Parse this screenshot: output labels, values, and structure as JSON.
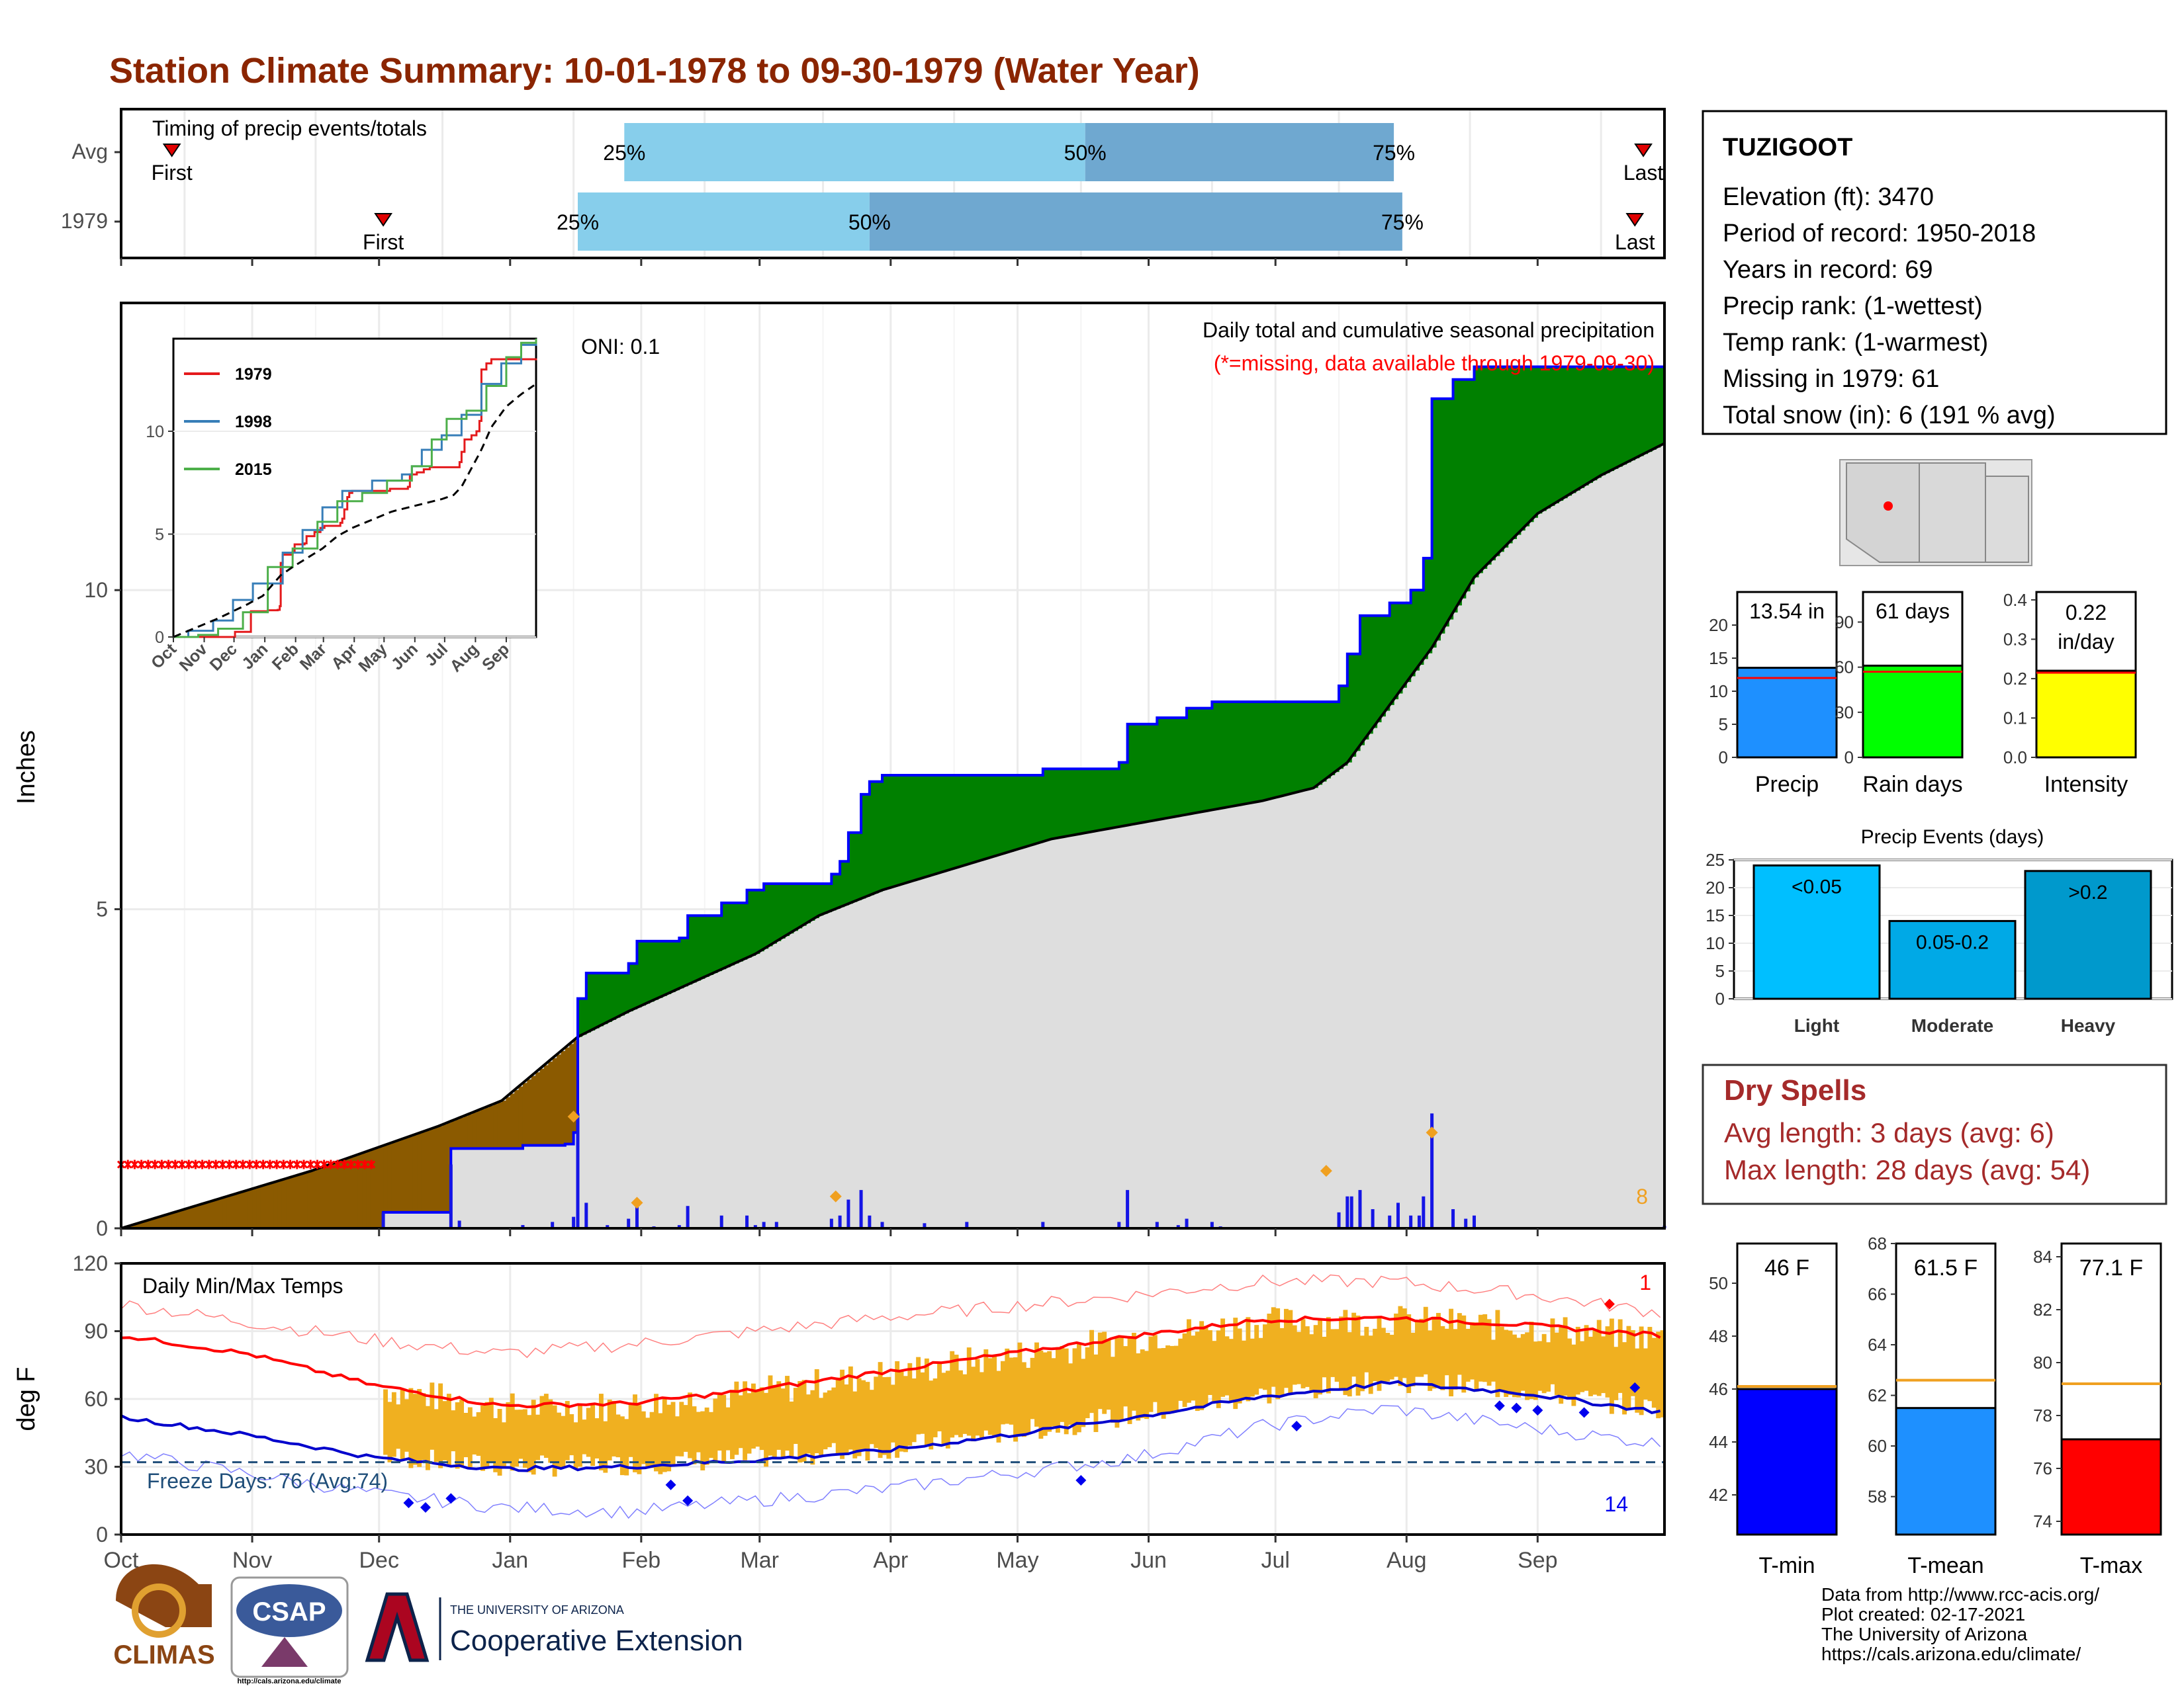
{
  "title": "Station Climate Summary: 10-01-1978 to 09-30-1979 (Water Year)",
  "colors": {
    "title": "#8B2500",
    "precip_bar": "#1515e6",
    "cumulative_line": "#0000ff",
    "avg_fill": "#dedede",
    "surplus": "#008000",
    "deficit": "#8B5A00",
    "temp_bar": "#f0b020",
    "tmax_line": "#ff0000",
    "tmin_line": "#0000cc",
    "quartile_light": "#87ceeb",
    "quartile_dark": "#6fa8d0"
  },
  "timing": {
    "title": "Timing of precip events/totals",
    "rows": [
      {
        "label": "Avg",
        "first": "First",
        "last": "Last",
        "q25": "25%",
        "q50": "50%",
        "q75": "75%",
        "first_day": 12,
        "last_day": 360,
        "q25_day": 119,
        "q50_day": 228,
        "q75_day": 301
      },
      {
        "label": "1979",
        "first": "First",
        "last": "Last",
        "q25": "25%",
        "q50": "50%",
        "q75": "75%",
        "first_day": 62,
        "last_day": 358,
        "q25_day": 108,
        "q50_day": 177,
        "q75_day": 303
      }
    ]
  },
  "precip_panel": {
    "ylabel": "Inches",
    "oni": "ONI: 0.1",
    "heading": "Daily total and cumulative seasonal precipitation",
    "missing_note": "(*=missing, data available through 1979-09-30)",
    "corner_count": "8",
    "yticks": [
      "0",
      "5",
      "10"
    ]
  },
  "inset": {
    "legend": [
      {
        "name": "1979",
        "color": "#e41a1c"
      },
      {
        "name": "1998",
        "color": "#377eb8"
      },
      {
        "name": "2015",
        "color": "#4daf4a"
      }
    ],
    "yticks": [
      "0",
      "5",
      "10"
    ],
    "xticks": [
      "Oct",
      "Nov",
      "Dec",
      "Jan",
      "Feb",
      "Mar",
      "Apr",
      "May",
      "Jun",
      "Jul",
      "Aug",
      "Sep"
    ]
  },
  "temp_panel": {
    "ylabel": "deg F",
    "title": "Daily Min/Max Temps",
    "freeze": "Freeze Days: 76 (Avg:74)",
    "top_count": "1",
    "bottom_count": "14",
    "yticks": [
      "0",
      "30",
      "60",
      "90",
      "120"
    ]
  },
  "months": [
    "Oct",
    "Nov",
    "Dec",
    "Jan",
    "Feb",
    "Mar",
    "Apr",
    "May",
    "Jun",
    "Jul",
    "Aug",
    "Sep"
  ],
  "station": {
    "name": "TUZIGOOT",
    "lines": [
      "Elevation (ft): 3470",
      "Period of record: 1950-2018",
      "Years in record: 69",
      "Precip rank:  (1-wettest)",
      "Temp rank:  (1-warmest)",
      "Missing in 1979: 61",
      "Total snow (in): 6 (191 % avg)"
    ]
  },
  "mini_bars": [
    {
      "label": "Precip",
      "value_text": "13.54 in",
      "value": 13.54,
      "avg": 12,
      "max": 25,
      "yticks": [
        "0",
        "5",
        "10",
        "15",
        "20"
      ],
      "tick_values": [
        0,
        5,
        10,
        15,
        20
      ],
      "color": "#1e90ff"
    },
    {
      "label": "Rain days",
      "value_text": "61 days",
      "value": 61,
      "avg": 57,
      "max": 110,
      "yticks": [
        "0",
        "30",
        "60",
        "90"
      ],
      "tick_values": [
        0,
        30,
        60,
        90
      ],
      "color": "#00ff00"
    },
    {
      "label": "Intensity",
      "value_text_1": "0.22",
      "value_text_2": "in/day",
      "value": 0.22,
      "avg": 0.215,
      "max": 0.42,
      "yticks": [
        "0.0",
        "0.1",
        "0.2",
        "0.3",
        "0.4"
      ],
      "tick_values": [
        0,
        0.1,
        0.2,
        0.3,
        0.4
      ],
      "color": "#ffff00"
    }
  ],
  "precip_events": {
    "title": "Precip Events (days)",
    "yticks": [
      "0",
      "5",
      "10",
      "15",
      "20",
      "25"
    ],
    "bars": [
      {
        "label": "Light",
        "inner": "<0.05",
        "value": 24,
        "color": "#00bfff"
      },
      {
        "label": "Moderate",
        "inner": "0.05-0.2",
        "value": 14,
        "color": "#00a9e6"
      },
      {
        "label": "Heavy",
        "inner": ">0.2",
        "value": 23,
        "color": "#0099cc"
      }
    ]
  },
  "dry_spells": {
    "title": "Dry Spells",
    "avg": "Avg length: 3 days (avg: 6)",
    "max": "Max length: 28 days (avg: 54)"
  },
  "temp_bars": [
    {
      "label": "T-min",
      "value_text": "46 F",
      "value": 46,
      "avg": 46.1,
      "min": 40.5,
      "max": 51.5,
      "yticks": [
        "42",
        "44",
        "46",
        "48",
        "50"
      ],
      "tick_values": [
        42,
        44,
        46,
        48,
        50
      ],
      "color": "#0000ff"
    },
    {
      "label": "T-mean",
      "value_text": "61.5 F",
      "value": 61.5,
      "avg": 62.6,
      "min": 56.5,
      "max": 68,
      "yticks": [
        "58",
        "60",
        "62",
        "64",
        "66",
        "68"
      ],
      "tick_values": [
        58,
        60,
        62,
        64,
        66,
        68
      ],
      "color": "#1e90ff"
    },
    {
      "label": "T-max",
      "value_text": "77.1 F",
      "value": 77.1,
      "avg": 79.2,
      "min": 73.5,
      "max": 84.5,
      "yticks": [
        "74",
        "76",
        "78",
        "80",
        "82",
        "84"
      ],
      "tick_values": [
        74,
        76,
        78,
        80,
        82,
        84
      ],
      "color": "#ff0000"
    }
  ],
  "footer": {
    "lines": [
      "Data from http://www.rcc-acis.org/",
      "Plot created: 02-17-2021",
      "The University of Arizona",
      "https://cals.arizona.edu/climate/"
    ],
    "logos": {
      "climas": "CLIMAS",
      "csap": "CSAP",
      "csap_url": "http://cals.arizona.edu/climate",
      "ua_small": "THE UNIVERSITY OF ARIZONA",
      "ua_big": "Cooperative Extension"
    }
  },
  "chart_data": {
    "type": "area",
    "title": "Daily total and cumulative seasonal precipitation",
    "ylabel": "Inches",
    "ylim": [
      0,
      14.5
    ],
    "x_units": "day of water year (Oct 1 = 0)",
    "cumulative_precip_1979": [
      [
        0,
        0
      ],
      [
        62,
        0
      ],
      [
        62,
        0.25
      ],
      [
        78,
        0.25
      ],
      [
        78,
        1.25
      ],
      [
        95,
        1.3
      ],
      [
        105,
        1.32
      ],
      [
        107,
        1.5
      ],
      [
        108,
        1.75
      ],
      [
        108,
        3.6
      ],
      [
        110,
        4
      ],
      [
        120,
        4.15
      ],
      [
        122,
        4.5
      ],
      [
        132,
        4.55
      ],
      [
        134,
        4.9
      ],
      [
        142,
        5.1
      ],
      [
        148,
        5.3
      ],
      [
        152,
        5.4
      ],
      [
        168,
        5.55
      ],
      [
        170,
        5.75
      ],
      [
        172,
        6.2
      ],
      [
        175,
        6.8
      ],
      [
        177,
        7.0
      ],
      [
        180,
        7.1
      ],
      [
        200,
        7.1
      ],
      [
        218,
        7.2
      ],
      [
        236,
        7.3
      ],
      [
        238,
        7.9
      ],
      [
        245,
        8.0
      ],
      [
        252,
        8.15
      ],
      [
        258,
        8.25
      ],
      [
        288,
        8.25
      ],
      [
        288,
        8.5
      ],
      [
        290,
        9.0
      ],
      [
        293,
        9.6
      ],
      [
        300,
        9.8
      ],
      [
        305,
        10.0
      ],
      [
        308,
        10.5
      ],
      [
        310,
        13.0
      ],
      [
        315,
        13.3
      ],
      [
        320,
        13.5
      ],
      [
        365,
        13.54
      ]
    ],
    "average_cumulative": [
      [
        0,
        0
      ],
      [
        15,
        0.3
      ],
      [
        30,
        0.6
      ],
      [
        45,
        0.9
      ],
      [
        60,
        1.25
      ],
      [
        75,
        1.6
      ],
      [
        90,
        2.0
      ],
      [
        108,
        3.0
      ],
      [
        120,
        3.4
      ],
      [
        135,
        3.85
      ],
      [
        150,
        4.3
      ],
      [
        165,
        4.9
      ],
      [
        180,
        5.3
      ],
      [
        200,
        5.7
      ],
      [
        220,
        6.1
      ],
      [
        245,
        6.4
      ],
      [
        270,
        6.7
      ],
      [
        282,
        6.9
      ],
      [
        290,
        7.3
      ],
      [
        300,
        8.2
      ],
      [
        310,
        9.1
      ],
      [
        320,
        10.2
      ],
      [
        335,
        11.2
      ],
      [
        350,
        11.8
      ],
      [
        365,
        12.3
      ]
    ],
    "missing_days": [
      0,
      60
    ],
    "daily_precip_highlights": [
      {
        "day": 107,
        "value": 1.75
      },
      {
        "day": 310,
        "value": 1.5
      },
      {
        "day": 285,
        "value": 0.9
      },
      {
        "day": 169,
        "value": 0.5
      },
      {
        "day": 122,
        "value": 0.4
      }
    ],
    "temperature": {
      "ylim": [
        0,
        120
      ],
      "normal_tmax": [
        [
          0,
          88
        ],
        [
          30,
          80
        ],
        [
          60,
          66
        ],
        [
          90,
          57
        ],
        [
          120,
          58
        ],
        [
          150,
          64
        ],
        [
          180,
          72
        ],
        [
          210,
          80
        ],
        [
          240,
          88
        ],
        [
          270,
          95
        ],
        [
          300,
          96
        ],
        [
          330,
          93
        ],
        [
          365,
          88
        ]
      ],
      "normal_tmin": [
        [
          0,
          52
        ],
        [
          30,
          44
        ],
        [
          60,
          34
        ],
        [
          90,
          29
        ],
        [
          120,
          30
        ],
        [
          150,
          33
        ],
        [
          180,
          37
        ],
        [
          210,
          44
        ],
        [
          240,
          52
        ],
        [
          270,
          61
        ],
        [
          300,
          67
        ],
        [
          330,
          63
        ],
        [
          365,
          54
        ]
      ],
      "record_tmax": [
        [
          0,
          102
        ],
        [
          60,
          86
        ],
        [
          90,
          80
        ],
        [
          120,
          84
        ],
        [
          180,
          96
        ],
        [
          240,
          106
        ],
        [
          270,
          112
        ],
        [
          300,
          112
        ],
        [
          330,
          107
        ],
        [
          365,
          98
        ]
      ],
      "record_tmin": [
        [
          0,
          36
        ],
        [
          60,
          18
        ],
        [
          90,
          12
        ],
        [
          120,
          10
        ],
        [
          180,
          20
        ],
        [
          240,
          34
        ],
        [
          270,
          48
        ],
        [
          300,
          56
        ],
        [
          330,
          48
        ],
        [
          365,
          40
        ]
      ],
      "freeze_line": 32
    }
  }
}
